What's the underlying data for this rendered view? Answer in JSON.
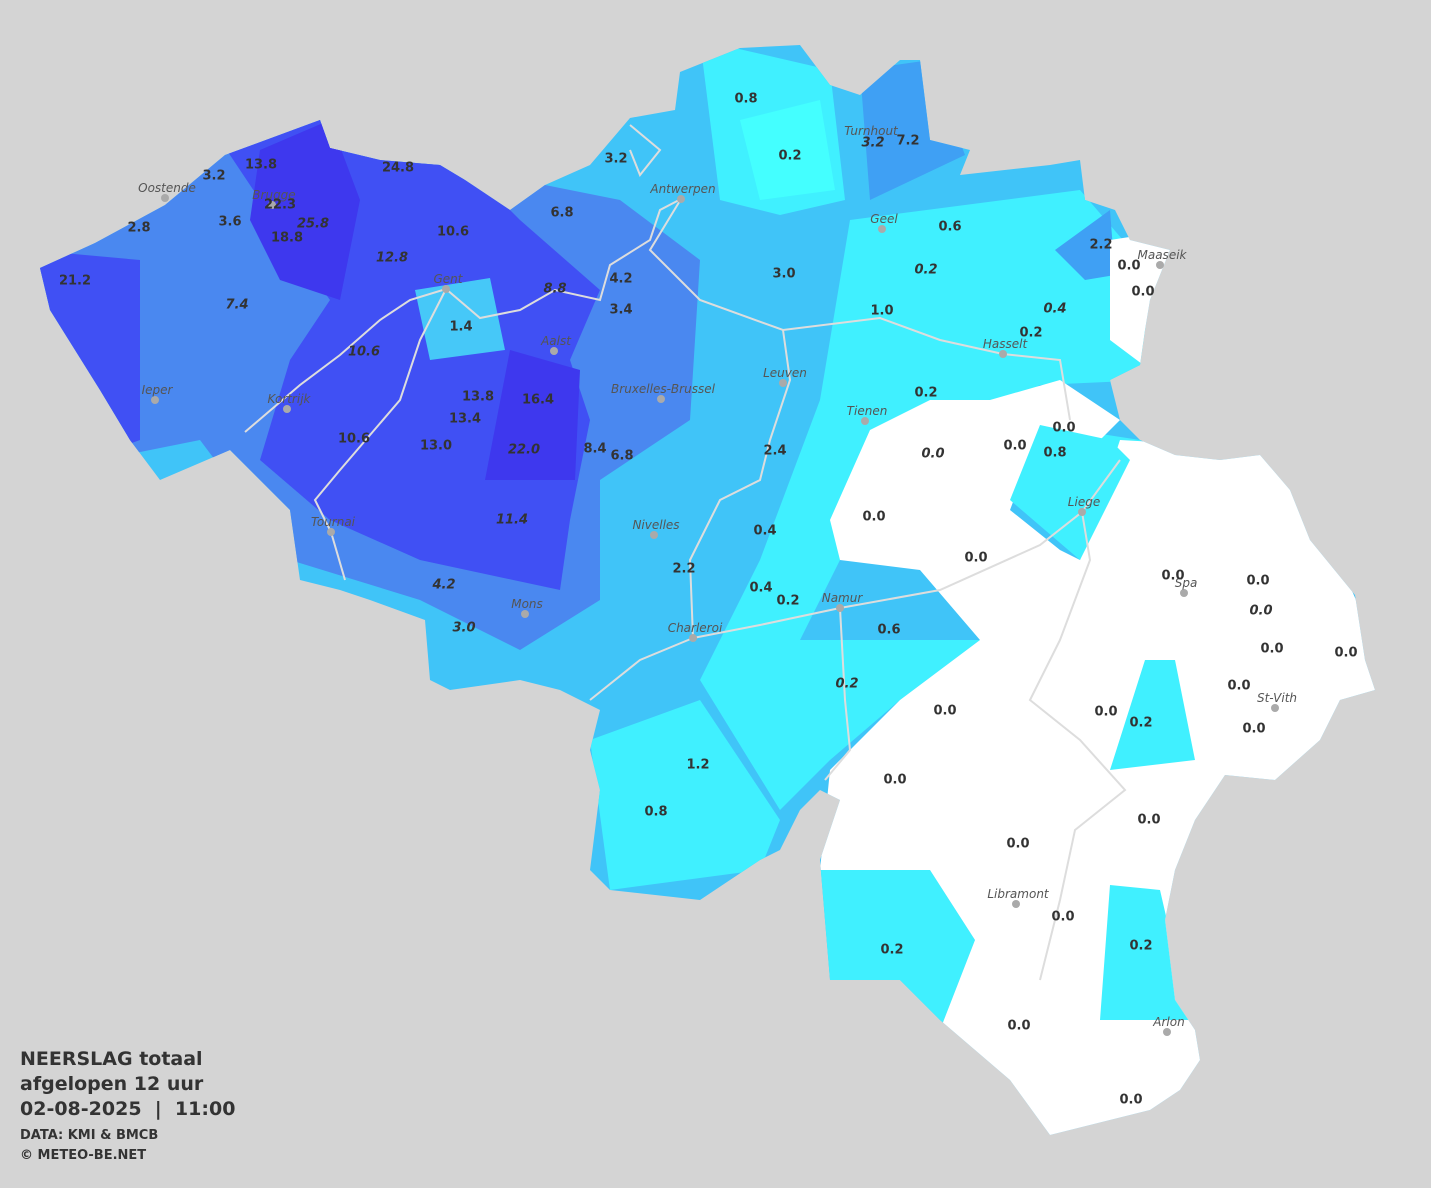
{
  "title": {
    "lines": [
      "NEERSLAG totaal",
      "afgelopen 12 uur",
      "02-08-2025  |  11:00"
    ],
    "credits": [
      "DATA: KMI & BMCB",
      "© METEO-BE.NET"
    ]
  },
  "cities": [
    "Oostende",
    "Brugge",
    "Gent",
    "Antwerpen",
    "Turnhout",
    "Geel",
    "Maaseik",
    "Hasselt",
    "Ieper",
    "Kortrijk",
    "Aalst",
    "Bruxelles-Brussel",
    "Leuven",
    "Tienen",
    "Liege",
    "Tournai",
    "Nivelles",
    "Mons",
    "Namur",
    "Charleroi",
    "Spa",
    "St-Vith",
    "Libramont",
    "Arlon"
  ],
  "measurements": [
    {
      "label": "0.8"
    },
    {
      "label": "0.2"
    },
    {
      "label": "3.2",
      "italic": true
    },
    {
      "label": "7.2"
    },
    {
      "label": "3.2"
    },
    {
      "label": "13.8"
    },
    {
      "label": "3.2"
    },
    {
      "label": "24.8"
    },
    {
      "label": "22.3"
    },
    {
      "label": "25.8",
      "italic": true
    },
    {
      "label": "18.8"
    },
    {
      "label": "3.6"
    },
    {
      "label": "2.8"
    },
    {
      "label": "6.8"
    },
    {
      "label": "10.6"
    },
    {
      "label": "12.8",
      "italic": true
    },
    {
      "label": "0.6"
    },
    {
      "label": "2.2"
    },
    {
      "label": "0.0"
    },
    {
      "label": "0.0"
    },
    {
      "label": "21.2"
    },
    {
      "label": "7.4",
      "italic": true
    },
    {
      "label": "4.2"
    },
    {
      "label": "8.8",
      "italic": true
    },
    {
      "label": "3.0"
    },
    {
      "label": "0.2",
      "italic": true
    },
    {
      "label": "3.4"
    },
    {
      "label": "1.4"
    },
    {
      "label": "1.0"
    },
    {
      "label": "0.4",
      "italic": true
    },
    {
      "label": "0.2"
    },
    {
      "label": "10.6",
      "italic": true
    },
    {
      "label": "13.8"
    },
    {
      "label": "16.4"
    },
    {
      "label": "0.2"
    },
    {
      "label": "13.4"
    },
    {
      "label": "0.0"
    },
    {
      "label": "10.6"
    },
    {
      "label": "13.0"
    },
    {
      "label": "22.0",
      "italic": true
    },
    {
      "label": "8.4"
    },
    {
      "label": "6.8"
    },
    {
      "label": "2.4"
    },
    {
      "label": "0.0",
      "italic": true
    },
    {
      "label": "0.0"
    },
    {
      "label": "0.8"
    },
    {
      "label": "0.0"
    },
    {
      "label": "11.4",
      "italic": true
    },
    {
      "label": "0.4"
    },
    {
      "label": "0.0"
    },
    {
      "label": "2.2"
    },
    {
      "label": "0.0"
    },
    {
      "label": "0.0"
    },
    {
      "label": "4.2",
      "italic": true
    },
    {
      "label": "0.4"
    },
    {
      "label": "0.2"
    },
    {
      "label": "0.0",
      "italic": true
    },
    {
      "label": "3.0",
      "italic": true
    },
    {
      "label": "0.6"
    },
    {
      "label": "0.0"
    },
    {
      "label": "0.0"
    },
    {
      "label": "0.2",
      "italic": true
    },
    {
      "label": "0.0"
    },
    {
      "label": "0.0"
    },
    {
      "label": "0.0"
    },
    {
      "label": "0.2"
    },
    {
      "label": "0.0"
    },
    {
      "label": "1.2"
    },
    {
      "label": "0.0"
    },
    {
      "label": "0.8"
    },
    {
      "label": "0.0"
    },
    {
      "label": "0.0"
    },
    {
      "label": "0.0"
    },
    {
      "label": "0.2"
    },
    {
      "label": "0.2"
    },
    {
      "label": "0.0"
    },
    {
      "label": "0.0"
    }
  ]
}
